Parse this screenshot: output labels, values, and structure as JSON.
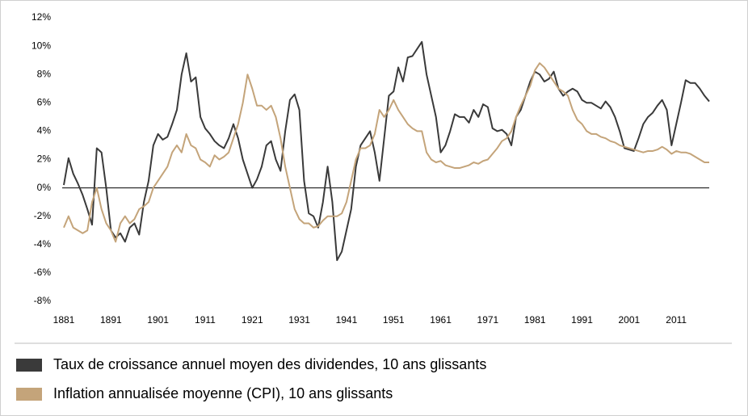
{
  "chart_data": {
    "type": "line",
    "x": [
      1881,
      1882,
      1883,
      1884,
      1885,
      1886,
      1887,
      1888,
      1889,
      1890,
      1891,
      1892,
      1893,
      1894,
      1895,
      1896,
      1897,
      1898,
      1899,
      1900,
      1901,
      1902,
      1903,
      1904,
      1905,
      1906,
      1907,
      1908,
      1909,
      1910,
      1911,
      1912,
      1913,
      1914,
      1915,
      1916,
      1917,
      1918,
      1919,
      1920,
      1921,
      1922,
      1923,
      1924,
      1925,
      1926,
      1927,
      1928,
      1929,
      1930,
      1931,
      1932,
      1933,
      1934,
      1935,
      1936,
      1937,
      1938,
      1939,
      1940,
      1941,
      1942,
      1943,
      1944,
      1945,
      1946,
      1947,
      1948,
      1949,
      1950,
      1951,
      1952,
      1953,
      1954,
      1955,
      1956,
      1957,
      1958,
      1959,
      1960,
      1961,
      1962,
      1963,
      1964,
      1965,
      1966,
      1967,
      1968,
      1969,
      1970,
      1971,
      1972,
      1973,
      1974,
      1975,
      1976,
      1977,
      1978,
      1979,
      1980,
      1981,
      1982,
      1983,
      1984,
      1985,
      1986,
      1987,
      1988,
      1989,
      1990,
      1991,
      1992,
      1993,
      1994,
      1995,
      1996,
      1997,
      1998,
      1999,
      2000,
      2001,
      2002,
      2003,
      2004,
      2005,
      2006,
      2007,
      2008,
      2009,
      2010,
      2011,
      2012,
      2013,
      2014,
      2015,
      2016,
      2017,
      2018
    ],
    "series": [
      {
        "name": "Taux de croissance annuel moyen des dividendes, 10 ans glissants",
        "color": "#3a3a3a",
        "values": [
          0.2,
          2.1,
          1.0,
          0.3,
          -0.5,
          -1.5,
          -2.6,
          2.8,
          2.5,
          0,
          -3.0,
          -3.5,
          -3.2,
          -3.8,
          -2.8,
          -2.5,
          -3.3,
          -1.0,
          0.5,
          3.0,
          3.8,
          3.4,
          3.6,
          4.5,
          5.5,
          8.0,
          9.5,
          7.5,
          7.8,
          5.0,
          4.2,
          3.8,
          3.3,
          3.0,
          2.8,
          3.5,
          4.5,
          3.5,
          2.0,
          1.0,
          0.0,
          0.6,
          1.5,
          3.0,
          3.3,
          2.0,
          1.2,
          4.0,
          6.2,
          6.6,
          5.5,
          0.5,
          -1.8,
          -2.0,
          -2.8,
          -1.0,
          1.5,
          -1.0,
          -5.1,
          -4.5,
          -3.0,
          -1.5,
          1.5,
          3.0,
          3.5,
          4.0,
          2.5,
          0.5,
          3.5,
          6.5,
          6.8,
          8.5,
          7.5,
          9.2,
          9.3,
          9.8,
          10.3,
          8.0,
          6.5,
          5.0,
          2.5,
          3.0,
          4.0,
          5.2,
          5.0,
          5.0,
          4.6,
          5.5,
          5.0,
          5.9,
          5.7,
          4.2,
          4.0,
          4.1,
          3.8,
          3.0,
          5.0,
          5.5,
          6.5,
          7.5,
          8.2,
          8.0,
          7.5,
          7.7,
          8.2,
          7.0,
          6.5,
          6.8,
          7.0,
          6.8,
          6.2,
          6.0,
          6.0,
          5.8,
          5.6,
          6.1,
          5.7,
          5.0,
          4.0,
          2.8,
          2.7,
          2.6,
          3.5,
          4.5,
          5.0,
          5.3,
          5.8,
          6.2,
          5.5,
          3.0,
          4.5,
          6.0,
          7.6,
          7.4,
          7.4,
          7.0,
          6.5,
          6.1
        ]
      },
      {
        "name": "Inflation annualisée moyenne (CPI), 10 ans glissants",
        "color": "#c4a47a",
        "values": [
          -2.8,
          -2.0,
          -2.8,
          -3.0,
          -3.2,
          -3.0,
          -1.0,
          0.0,
          -1.5,
          -2.5,
          -3.0,
          -3.8,
          -2.5,
          -2.0,
          -2.5,
          -2.2,
          -1.5,
          -1.3,
          -1.0,
          0.0,
          0.5,
          1.0,
          1.5,
          2.5,
          3.0,
          2.5,
          3.8,
          3.0,
          2.8,
          2.0,
          1.8,
          1.5,
          2.3,
          2.0,
          2.2,
          2.5,
          3.5,
          4.5,
          6.0,
          8.0,
          7.0,
          5.8,
          5.8,
          5.5,
          5.8,
          5.0,
          3.5,
          1.5,
          0.0,
          -1.5,
          -2.2,
          -2.5,
          -2.5,
          -2.8,
          -2.7,
          -2.3,
          -2.0,
          -2.0,
          -2.0,
          -1.8,
          -1.0,
          0.5,
          2.0,
          2.8,
          2.8,
          3.0,
          3.8,
          5.5,
          5.0,
          5.5,
          6.2,
          5.5,
          5.0,
          4.5,
          4.2,
          4.0,
          4.0,
          2.5,
          2.0,
          1.8,
          1.9,
          1.6,
          1.5,
          1.4,
          1.4,
          1.5,
          1.6,
          1.8,
          1.7,
          1.9,
          2.0,
          2.4,
          2.8,
          3.3,
          3.5,
          4.0,
          5.0,
          5.8,
          6.5,
          7.2,
          8.3,
          8.8,
          8.5,
          8.0,
          7.5,
          7.0,
          6.8,
          6.5,
          5.5,
          4.8,
          4.5,
          4.0,
          3.8,
          3.8,
          3.6,
          3.5,
          3.3,
          3.2,
          3.0,
          2.9,
          2.8,
          2.7,
          2.6,
          2.5,
          2.6,
          2.6,
          2.7,
          2.9,
          2.7,
          2.4,
          2.6,
          2.5,
          2.5,
          2.4,
          2.2,
          2.0,
          1.8,
          1.8
        ]
      }
    ],
    "xlim": [
      1881,
      2018
    ],
    "xticks": [
      1881,
      1891,
      1901,
      1911,
      1921,
      1931,
      1941,
      1951,
      1961,
      1971,
      1981,
      1991,
      2001,
      2011
    ],
    "ylim": [
      -8,
      12
    ],
    "yticks": [
      {
        "value": -8,
        "label": "-8%"
      },
      {
        "value": -6,
        "label": "-6%"
      },
      {
        "value": -4,
        "label": "-4%"
      },
      {
        "value": -2,
        "label": "-2%"
      },
      {
        "value": 0,
        "label": "0%"
      },
      {
        "value": 2,
        "label": "2%"
      },
      {
        "value": 4,
        "label": "4%"
      },
      {
        "value": 6,
        "label": "6%"
      },
      {
        "value": 8,
        "label": "8%"
      },
      {
        "value": 10,
        "label": "10%"
      },
      {
        "value": 12,
        "label": "12%"
      }
    ],
    "grid": false,
    "legend": "bottom"
  }
}
